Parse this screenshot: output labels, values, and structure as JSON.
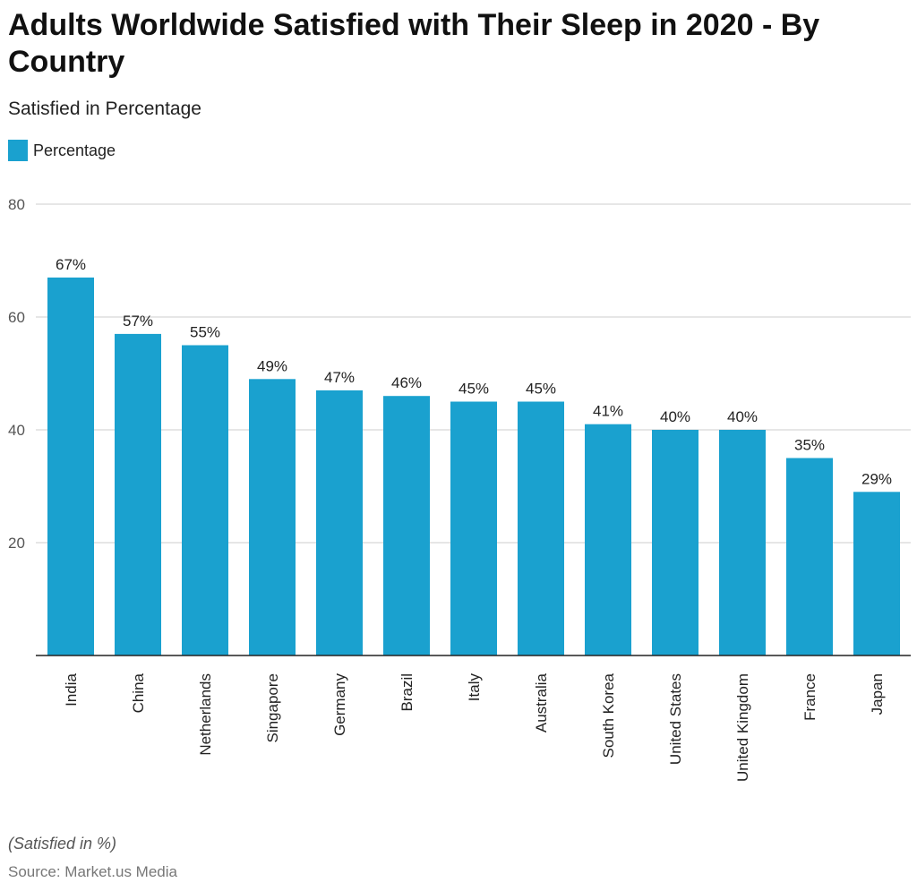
{
  "chart_data": {
    "type": "bar",
    "title": "Adults Worldwide Satisfied with Their Sleep in 2020 - By Country",
    "subtitle": "Satisfied in Percentage",
    "legend": [
      "Percentage"
    ],
    "legend_placement": "top-left",
    "categories": [
      "India",
      "China",
      "Netherlands",
      "Singapore",
      "Germany",
      "Brazil",
      "Italy",
      "Australia",
      "South Korea",
      "United States",
      "United Kingdom",
      "France",
      "Japan"
    ],
    "series": [
      {
        "name": "Percentage",
        "values": [
          67,
          57,
          55,
          49,
          47,
          46,
          45,
          45,
          41,
          40,
          40,
          35,
          29
        ],
        "color": "#1aa1cf"
      }
    ],
    "data_labels": [
      "67%",
      "57%",
      "55%",
      "49%",
      "47%",
      "46%",
      "45%",
      "45%",
      "41%",
      "40%",
      "40%",
      "35%",
      "29%"
    ],
    "ylim": [
      0,
      80
    ],
    "yticks": [
      20,
      40,
      60,
      80
    ],
    "grid": true,
    "xlabel": "",
    "ylabel": ""
  },
  "footer": {
    "note": "(Satisfied in %)",
    "source": "Source: Market.us Media"
  }
}
